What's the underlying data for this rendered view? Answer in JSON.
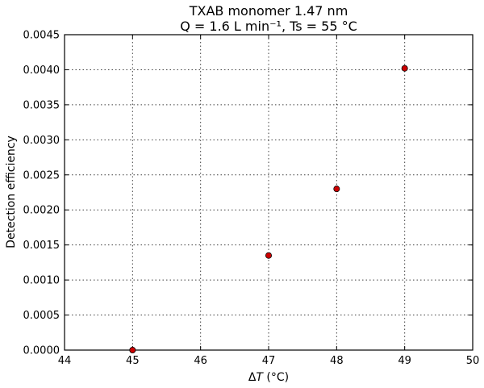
{
  "chart_data": {
    "type": "scatter",
    "title": "TXAB monomer 1.47 nm",
    "subtitle": "Q = 1.6 L min⁻¹, Ts = 55 °C",
    "xlabel": "ΔT (°C)",
    "xlabel_parts": {
      "symbol": "Δ",
      "variable": "T",
      "unit": " (°C)"
    },
    "ylabel": "Detection efficiency",
    "xlim": [
      44,
      50
    ],
    "ylim": [
      0,
      0.0045
    ],
    "xticks": [
      44,
      45,
      46,
      47,
      48,
      49,
      50
    ],
    "xtick_labels": [
      "44",
      "45",
      "46",
      "47",
      "48",
      "49",
      "50"
    ],
    "yticks": [
      0,
      0.0005,
      0.001,
      0.0015,
      0.002,
      0.0025,
      0.003,
      0.0035,
      0.004,
      0.0045
    ],
    "ytick_labels": [
      "0.0000",
      "0.0005",
      "0.0010",
      "0.0015",
      "0.0020",
      "0.0025",
      "0.0030",
      "0.0035",
      "0.0040",
      "0.0045"
    ],
    "grid": true,
    "series": [
      {
        "color": "#cc0000",
        "marker": "circle",
        "points": [
          {
            "x": 45,
            "y": 0.0
          },
          {
            "x": 47,
            "y": 0.00135
          },
          {
            "x": 48,
            "y": 0.0023
          },
          {
            "x": 49,
            "y": 0.00402
          }
        ]
      }
    ]
  }
}
